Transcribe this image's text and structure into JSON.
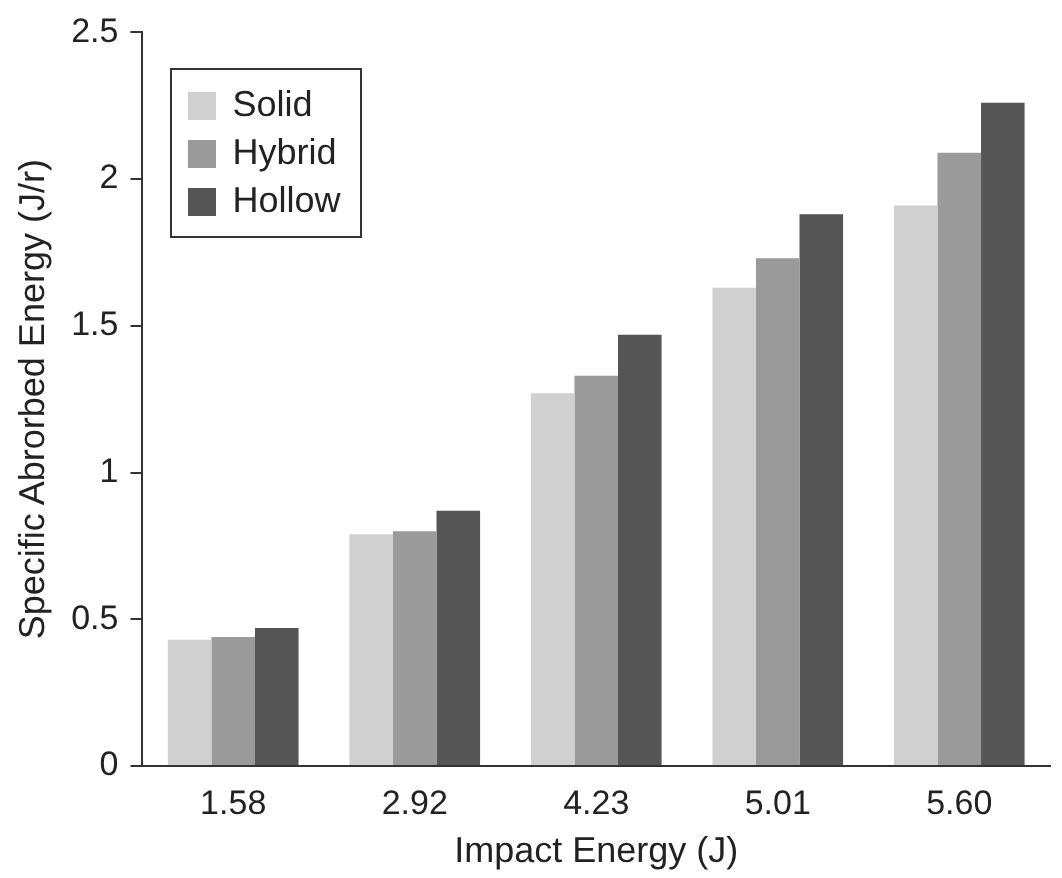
{
  "chart_data": {
    "type": "bar",
    "xlabel": "Impact Energy (J)",
    "ylabel": "Specific Abrorbed Energy (J/r)",
    "categories": [
      "1.58",
      "2.92",
      "4.23",
      "5.01",
      "5.60"
    ],
    "series": [
      {
        "name": "Solid",
        "color": "#d0d0d0",
        "values": [
          0.43,
          0.79,
          1.27,
          1.63,
          1.91
        ]
      },
      {
        "name": "Hybrid",
        "color": "#9a9a9a",
        "values": [
          0.44,
          0.8,
          1.33,
          1.73,
          2.09
        ]
      },
      {
        "name": "Hollow",
        "color": "#555555",
        "values": [
          0.47,
          0.87,
          1.47,
          1.88,
          2.26
        ]
      }
    ],
    "ylim": [
      0,
      2.5
    ],
    "yticks": [
      0,
      0.5,
      1,
      1.5,
      2,
      2.5
    ],
    "grid": false,
    "legend": "top left"
  }
}
